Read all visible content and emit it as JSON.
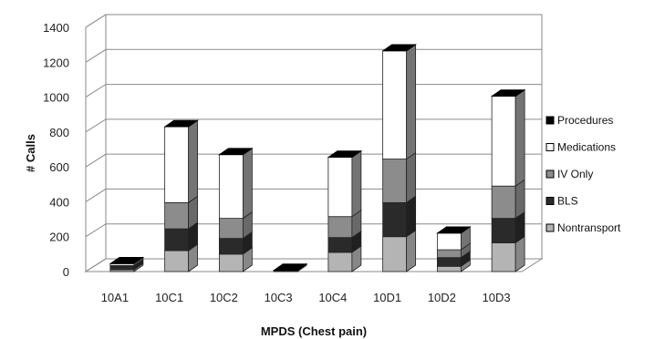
{
  "chart_data": {
    "type": "bar",
    "stacked": true,
    "style": "3d",
    "categories": [
      "10A1",
      "10C1",
      "10C2",
      "10C3",
      "10C4",
      "10D1",
      "10D2",
      "10D3"
    ],
    "series": [
      {
        "name": "Nontransport",
        "color": "#b4b4b4",
        "values": [
          10,
          120,
          100,
          2,
          110,
          200,
          30,
          165
        ]
      },
      {
        "name": "BLS",
        "color": "#2a2a2a",
        "values": [
          20,
          125,
          90,
          2,
          85,
          195,
          50,
          140
        ]
      },
      {
        "name": "IV Only",
        "color": "#8c8c8c",
        "values": [
          5,
          150,
          115,
          1,
          120,
          250,
          45,
          185
        ]
      },
      {
        "name": "Medications",
        "color": "#ffffff",
        "values": [
          10,
          435,
          365,
          2,
          340,
          620,
          95,
          515
        ]
      },
      {
        "name": "Procedures",
        "color": "#000000",
        "values": [
          0,
          0,
          0,
          0,
          0,
          0,
          0,
          0
        ]
      }
    ],
    "xlabel": "MPDS (Chest pain)",
    "ylabel": "# Calls",
    "ylim": [
      0,
      1400
    ],
    "yticks": [
      0,
      200,
      400,
      600,
      800,
      1000,
      1200,
      1400
    ],
    "grid": true,
    "legend_position": "right",
    "legend_order": [
      "Procedures",
      "Medications",
      "IV Only",
      "BLS",
      "Nontransport"
    ]
  }
}
